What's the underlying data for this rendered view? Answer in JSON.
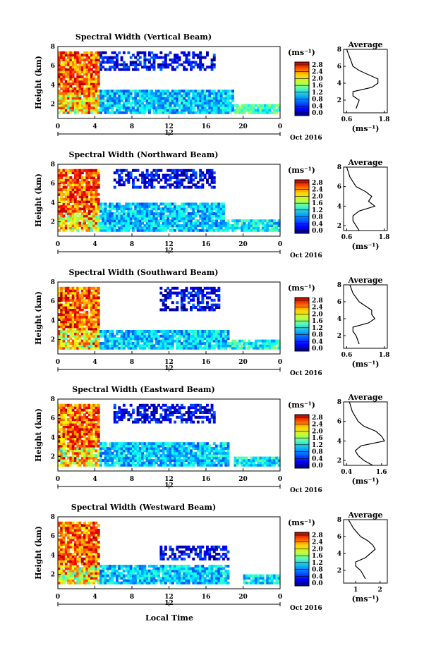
{
  "figure": {
    "xlabel": "Local Time",
    "date_label": "Oct 2016",
    "day_label": "12",
    "unit_label": "(ms⁻¹)",
    "avg_title": "Average",
    "avg_xlabel": "(ms⁻¹)",
    "colorbar_ticks": [
      "0.0",
      "0.4",
      "0.8",
      "1.2",
      "1.6",
      "2.0",
      "2.4",
      "2.8"
    ]
  },
  "chart_data": [
    {
      "type": "heatmap",
      "title": "Spectral Width (Vertical Beam)",
      "ylabel": "Height (km)",
      "xlabel": "",
      "x_ticks": [
        "0",
        "4",
        "8",
        "12",
        "16",
        "20",
        "0"
      ],
      "y_ticks": [
        "2",
        "4",
        "6",
        "8"
      ],
      "xlim": [
        0,
        24
      ],
      "ylim": [
        0.5,
        8
      ],
      "colorbar": {
        "label": "(ms⁻¹)",
        "range": [
          0.0,
          2.8
        ]
      },
      "regions": [
        {
          "t": [
            0,
            4.5
          ],
          "h": [
            1.0,
            7.5
          ],
          "value": 2.2
        },
        {
          "t": [
            4.5,
            19
          ],
          "h": [
            1.0,
            3.5
          ],
          "value": 0.9
        },
        {
          "t": [
            4.5,
            17
          ],
          "h": [
            5.5,
            7.5
          ],
          "value": 0.3
        },
        {
          "t": [
            19,
            24
          ],
          "h": [
            1.0,
            2.0
          ],
          "value": 1.2
        }
      ],
      "average": {
        "title": "Average",
        "xlabel": "(ms⁻¹)",
        "x_ticks": [
          "0.6",
          "1.8"
        ],
        "xlim": [
          0.5,
          1.9
        ],
        "y_ticks": [
          "2",
          "4",
          "6",
          "8"
        ],
        "ylim": [
          0.5,
          8
        ],
        "height": [
          1.0,
          2.0,
          2.5,
          3.0,
          3.5,
          4.0,
          4.5,
          5.0,
          5.5,
          6.0,
          7.0,
          8.0
        ],
        "width": [
          0.9,
          1.0,
          0.8,
          0.8,
          1.4,
          1.6,
          1.6,
          1.3,
          1.0,
          0.8,
          0.7,
          0.6
        ]
      }
    },
    {
      "type": "heatmap",
      "title": "Spectral Width (Northward Beam)",
      "ylabel": "Height (km)",
      "xlabel": "",
      "x_ticks": [
        "0",
        "4",
        "8",
        "12",
        "16",
        "20",
        "0"
      ],
      "y_ticks": [
        "2",
        "4",
        "6",
        "8"
      ],
      "xlim": [
        0,
        24
      ],
      "ylim": [
        0.5,
        8
      ],
      "colorbar": {
        "label": "(ms⁻¹)",
        "range": [
          0.0,
          2.8
        ]
      },
      "regions": [
        {
          "t": [
            0,
            4.5
          ],
          "h": [
            1.0,
            7.5
          ],
          "value": 2.2
        },
        {
          "t": [
            4.5,
            18
          ],
          "h": [
            1.0,
            3.8
          ],
          "value": 0.9
        },
        {
          "t": [
            6,
            17
          ],
          "h": [
            5.5,
            7.5
          ],
          "value": 0.3
        },
        {
          "t": [
            18,
            24
          ],
          "h": [
            1.0,
            2.2
          ],
          "value": 1.0
        }
      ],
      "average": {
        "title": "Average",
        "xlabel": "(ms⁻¹)",
        "x_ticks": [
          "0.6",
          "1.8"
        ],
        "xlim": [
          0.5,
          1.9
        ],
        "y_ticks": [
          "2",
          "4",
          "6",
          "8"
        ],
        "ylim": [
          1.5,
          8
        ],
        "height": [
          1.5,
          2.0,
          2.5,
          3.0,
          3.5,
          4.0,
          4.5,
          5.0,
          5.5,
          6.0,
          7.0,
          8.0
        ],
        "width": [
          1.0,
          0.9,
          0.8,
          0.8,
          1.0,
          1.5,
          1.3,
          1.4,
          1.2,
          0.9,
          0.7,
          0.6
        ]
      }
    },
    {
      "type": "heatmap",
      "title": "Spectral Width (Southward Beam)",
      "ylabel": "Height (km)",
      "xlabel": "",
      "x_ticks": [
        "0",
        "4",
        "8",
        "12",
        "16",
        "20",
        "0"
      ],
      "y_ticks": [
        "2",
        "4",
        "6",
        "8"
      ],
      "xlim": [
        0,
        24
      ],
      "ylim": [
        0.5,
        8
      ],
      "colorbar": {
        "label": "(ms⁻¹)",
        "range": [
          0.0,
          2.8
        ]
      },
      "regions": [
        {
          "t": [
            0,
            4.5
          ],
          "h": [
            1.0,
            7.5
          ],
          "value": 2.2
        },
        {
          "t": [
            4.5,
            18.5
          ],
          "h": [
            1.0,
            3.0
          ],
          "value": 0.9
        },
        {
          "t": [
            11,
            17.5
          ],
          "h": [
            5.0,
            7.5
          ],
          "value": 0.3
        },
        {
          "t": [
            18.5,
            24
          ],
          "h": [
            1.0,
            2.0
          ],
          "value": 1.1
        }
      ],
      "average": {
        "title": "Average",
        "xlabel": "(ms⁻¹)",
        "x_ticks": [
          "0.6",
          "1.8"
        ],
        "xlim": [
          0.5,
          1.9
        ],
        "y_ticks": [
          "2",
          "4",
          "6",
          "8"
        ],
        "ylim": [
          0.5,
          8
        ],
        "height": [
          1.0,
          2.0,
          2.5,
          3.0,
          3.5,
          4.0,
          4.5,
          5.0,
          5.5,
          6.0,
          7.0,
          8.0
        ],
        "width": [
          1.0,
          0.9,
          0.8,
          0.8,
          1.3,
          1.5,
          1.4,
          1.4,
          1.2,
          1.0,
          0.8,
          0.7
        ]
      }
    },
    {
      "type": "heatmap",
      "title": "Spectral Width (Eastward Beam)",
      "ylabel": "Height (km)",
      "xlabel": "",
      "x_ticks": [
        "0",
        "4",
        "8",
        "12",
        "16",
        "20",
        "0"
      ],
      "y_ticks": [
        "2",
        "4",
        "6",
        "8"
      ],
      "xlim": [
        0,
        24
      ],
      "ylim": [
        0.5,
        8
      ],
      "colorbar": {
        "label": "(ms⁻¹)",
        "range": [
          0.0,
          2.8
        ]
      },
      "regions": [
        {
          "t": [
            0,
            4.5
          ],
          "h": [
            1.0,
            7.5
          ],
          "value": 2.2
        },
        {
          "t": [
            4.5,
            18.5
          ],
          "h": [
            1.0,
            3.5
          ],
          "value": 0.9
        },
        {
          "t": [
            6,
            17
          ],
          "h": [
            5.5,
            7.5
          ],
          "value": 0.3
        },
        {
          "t": [
            19,
            24
          ],
          "h": [
            1.0,
            2.0
          ],
          "value": 1.0
        }
      ],
      "average": {
        "title": "Average",
        "xlabel": "(ms⁻¹)",
        "x_ticks": [
          "0.4",
          "1.6"
        ],
        "xlim": [
          0.3,
          1.8
        ],
        "y_ticks": [
          "2",
          "4",
          "6",
          "8"
        ],
        "ylim": [
          1.5,
          8
        ],
        "height": [
          1.5,
          2.0,
          2.5,
          3.0,
          3.5,
          4.0,
          4.5,
          5.0,
          5.5,
          6.0,
          7.0,
          8.0
        ],
        "width": [
          1.3,
          1.0,
          0.8,
          0.7,
          0.9,
          1.7,
          1.6,
          1.4,
          1.0,
          0.8,
          0.6,
          0.5
        ]
      }
    },
    {
      "type": "heatmap",
      "title": "Spectral Width (Westward Beam)",
      "ylabel": "Height (km)",
      "xlabel": "Local Time",
      "x_ticks": [
        "0",
        "4",
        "8",
        "12",
        "16",
        "20",
        "0"
      ],
      "y_ticks": [
        "2",
        "4",
        "6",
        "8"
      ],
      "xlim": [
        0,
        24
      ],
      "ylim": [
        0.5,
        8
      ],
      "colorbar": {
        "label": "(ms⁻¹)",
        "range": [
          0.0,
          2.8
        ]
      },
      "regions": [
        {
          "t": [
            0,
            4.5
          ],
          "h": [
            1.0,
            7.5
          ],
          "value": 2.2
        },
        {
          "t": [
            4.5,
            18.5
          ],
          "h": [
            1.0,
            3.0
          ],
          "value": 0.9
        },
        {
          "t": [
            11,
            18.5
          ],
          "h": [
            3.5,
            5.0
          ],
          "value": 0.3
        },
        {
          "t": [
            20,
            24
          ],
          "h": [
            1.0,
            2.0
          ],
          "value": 1.0
        }
      ],
      "average": {
        "title": "Average",
        "xlabel": "(ms⁻¹)",
        "x_ticks": [
          "1",
          "2"
        ],
        "xlim": [
          0.5,
          2.3
        ],
        "y_ticks": [
          "2",
          "4",
          "6",
          "8"
        ],
        "ylim": [
          0.5,
          8
        ],
        "height": [
          1.0,
          2.0,
          2.5,
          3.0,
          3.5,
          4.0,
          4.5,
          5.0,
          5.5,
          6.0,
          7.0,
          8.0
        ],
        "width": [
          1.4,
          1.2,
          1.0,
          1.0,
          1.4,
          1.6,
          1.8,
          1.7,
          1.5,
          1.2,
          0.9,
          0.7
        ]
      }
    }
  ]
}
